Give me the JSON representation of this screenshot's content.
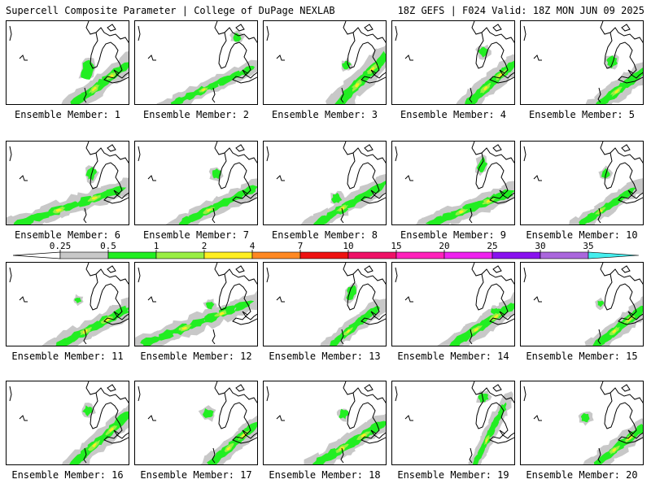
{
  "header": {
    "left_title": "Supercell Composite Parameter | College of DuPage NEXLAB",
    "right_title": "18Z GEFS | F024 Valid: 18Z MON JUN 09 2025"
  },
  "colors": {
    "gray": "#c8c8c8",
    "green": "#22ee22",
    "light_green": "#99ee44",
    "yellow": "#ffee22",
    "orange": "#ff8822",
    "coastline": "#000000",
    "background": "#ffffff"
  },
  "colorbar": {
    "labels": [
      "0.25",
      "0.5",
      "1",
      "2",
      "4",
      "7",
      "10",
      "15",
      "20",
      "25",
      "30",
      "35"
    ],
    "colors": [
      "#c8c8c8",
      "#22ee22",
      "#99ee44",
      "#ffee22",
      "#ff8822",
      "#ee1111",
      "#ee1166",
      "#ff22bb",
      "#ee22ee",
      "#8811ee",
      "#aa66dd",
      "#44eeee"
    ]
  },
  "panels": [
    {
      "label": "Ensemble Member: 1"
    },
    {
      "label": "Ensemble Member: 2"
    },
    {
      "label": "Ensemble Member: 3"
    },
    {
      "label": "Ensemble Member: 4"
    },
    {
      "label": "Ensemble Member: 5"
    },
    {
      "label": "Ensemble Member: 6"
    },
    {
      "label": "Ensemble Member: 7"
    },
    {
      "label": "Ensemble Member: 8"
    },
    {
      "label": "Ensemble Member: 9"
    },
    {
      "label": "Ensemble Member: 10"
    },
    {
      "label": "Ensemble Member: 11"
    },
    {
      "label": "Ensemble Member: 12"
    },
    {
      "label": "Ensemble Member: 13"
    },
    {
      "label": "Ensemble Member: 14"
    },
    {
      "label": "Ensemble Member: 15"
    },
    {
      "label": "Ensemble Member: 16"
    },
    {
      "label": "Ensemble Member: 17"
    },
    {
      "label": "Ensemble Member: 18"
    },
    {
      "label": "Ensemble Member: 19"
    },
    {
      "label": "Ensemble Member: 20"
    }
  ]
}
